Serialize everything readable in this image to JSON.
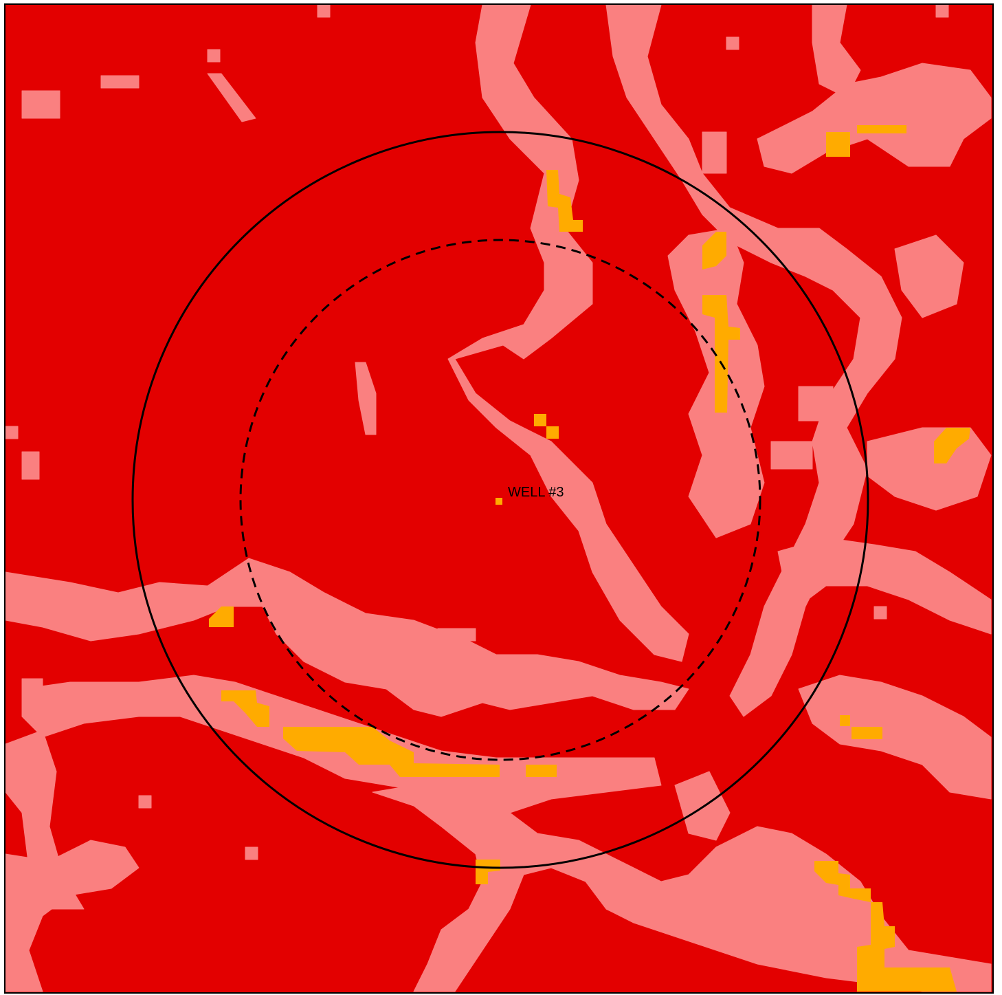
{
  "map": {
    "colors": {
      "background": "#e30000",
      "corridor": "#fa8080",
      "hotspot": "#ffab00",
      "rings": "#000000"
    },
    "well": {
      "label": "WELL #3",
      "marker_color": "#ffab00"
    },
    "rings": [
      {
        "style": "solid"
      },
      {
        "style": "dashed"
      }
    ]
  }
}
